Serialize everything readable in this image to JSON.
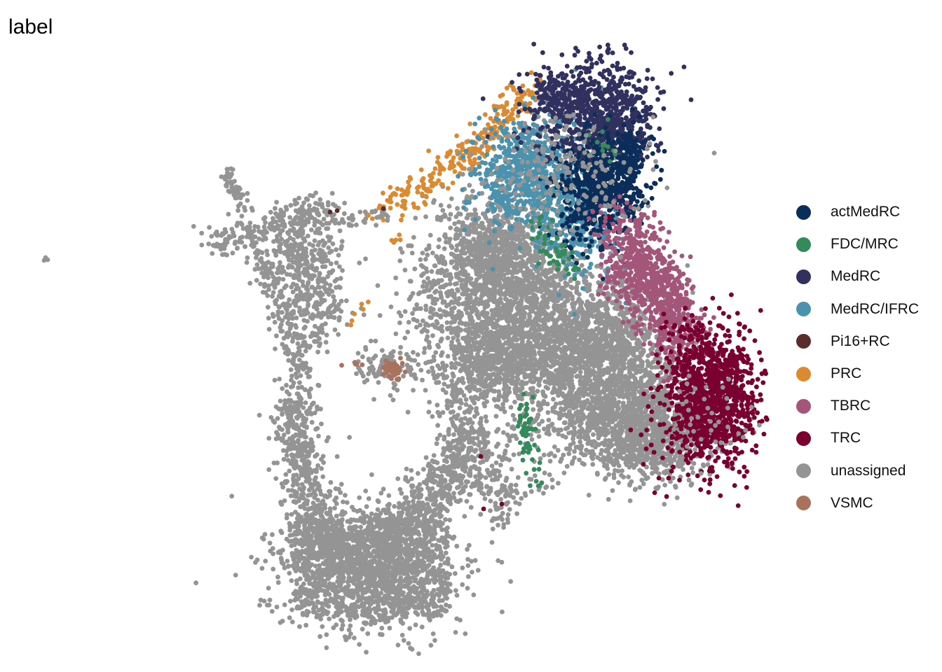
{
  "title": "label",
  "chart_data": {
    "type": "scatter",
    "title": "label",
    "xlabel": "",
    "ylabel": "",
    "grid": false,
    "axes_visible": false,
    "legend_position": "right",
    "legend": [
      {
        "name": "actMedRC",
        "color": "#0b2d59"
      },
      {
        "name": "FDC/MRC",
        "color": "#338a5a"
      },
      {
        "name": "MedRC",
        "color": "#30315e"
      },
      {
        "name": "MedRC/IFRC",
        "color": "#4a92ad"
      },
      {
        "name": "Pi16+RC",
        "color": "#5c2b2b"
      },
      {
        "name": "PRC",
        "color": "#dc8a32"
      },
      {
        "name": "TBRC",
        "color": "#a35679"
      },
      {
        "name": "TRC",
        "color": "#7a0030"
      },
      {
        "name": "unassigned",
        "color": "#949494"
      },
      {
        "name": "VSMC",
        "color": "#a8725d"
      }
    ]
  }
}
